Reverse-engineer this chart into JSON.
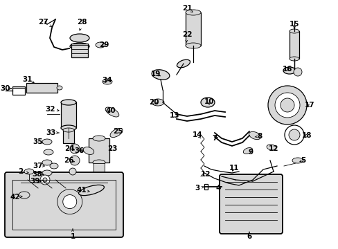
{
  "bg_color": "#ffffff",
  "fg_color": "#000000",
  "fig_width": 4.89,
  "fig_height": 3.6,
  "dpi": 100,
  "lw_thin": 0.6,
  "lw_med": 0.9,
  "lw_thick": 1.3,
  "label_fs": 7.5,
  "part_color": "#000000",
  "fill_light": "#d8d8d8",
  "fill_white": "#ffffff"
}
